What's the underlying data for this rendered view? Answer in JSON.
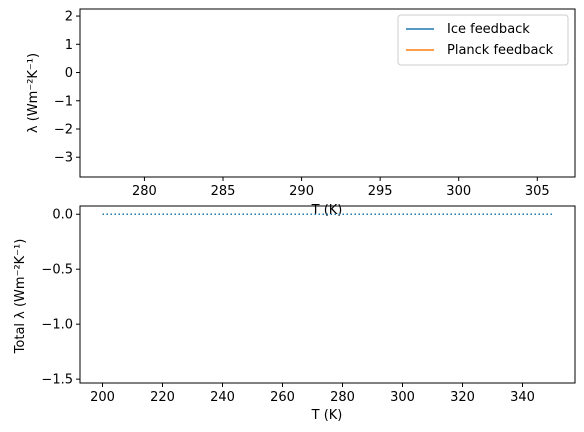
{
  "chart_data": [
    {
      "type": "line",
      "ylabel": "λ (Wm⁻²K⁻¹)",
      "xlabel": "T (K)",
      "xlim": [
        275.9,
        307.4
      ],
      "ylim": [
        -3.7,
        2.25
      ],
      "xticks": [
        "280",
        "285",
        "290",
        "295",
        "300",
        "305"
      ],
      "yticks": [
        "2",
        "1",
        "0",
        "−1",
        "−2",
        "−3"
      ],
      "xtick_values": [
        280,
        285,
        290,
        295,
        300,
        305
      ],
      "ytick_values": [
        2,
        1,
        0,
        -1,
        -2,
        -3
      ],
      "legend_position": "top-right",
      "series": [
        {
          "name": "Ice feedback",
          "color": "#1f77b4",
          "x": [],
          "y": []
        },
        {
          "name": "Planck feedback",
          "color": "#ff7f0e",
          "x": [],
          "y": []
        }
      ]
    },
    {
      "type": "line",
      "ylabel": "Total λ (Wm⁻²K⁻¹)",
      "xlabel": "T (K)",
      "xlim": [
        192.5,
        357.5
      ],
      "ylim": [
        -1.535,
        0.075
      ],
      "xticks": [
        "200",
        "220",
        "240",
        "260",
        "280",
        "300",
        "320",
        "340"
      ],
      "yticks": [
        "0.0",
        "−0.5",
        "−1.0",
        "−1.5"
      ],
      "xtick_values": [
        200,
        220,
        240,
        260,
        280,
        300,
        320,
        340
      ],
      "ytick_values": [
        0,
        -0.5,
        -1.0,
        -1.5
      ],
      "series": [
        {
          "color": "#1f77b4",
          "line_style": "dotted",
          "x": [
            200,
            350
          ],
          "y": [
            0,
            0
          ]
        }
      ]
    }
  ]
}
